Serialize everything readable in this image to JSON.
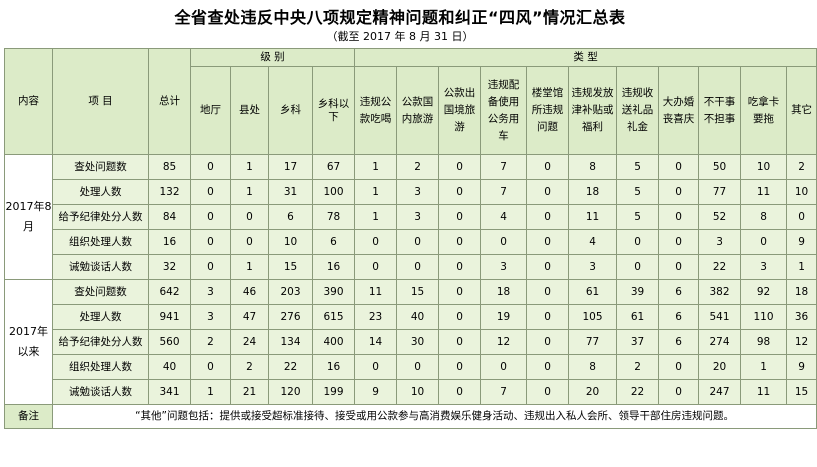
{
  "title": "全省查处违反中央八项规定精神问题和纠正“四风”情况汇总表",
  "subtitle": "（截至 2017 年 8 月 31 日）",
  "header": {
    "content": "内容",
    "item": "项    目",
    "total": "总计",
    "level_group": "级    别",
    "type_group": "类    型",
    "levels": [
      "地厅",
      "县处",
      "乡科",
      "乡科以下"
    ],
    "types": [
      "违规公款吃喝",
      "公款国内旅游",
      "公款出国境旅游",
      "违规配备使用公务用车",
      "楼堂馆所违规问题",
      "违规发放津补贴或福利",
      "违规收送礼品礼金",
      "大办婚丧喜庆",
      "不干事不担事",
      "吃拿卡要拖",
      "其它"
    ]
  },
  "sections": [
    {
      "period": "2017年8月",
      "rows": [
        {
          "label": "查处问题数",
          "values": [
            "85",
            "0",
            "1",
            "17",
            "67",
            "1",
            "2",
            "0",
            "7",
            "0",
            "8",
            "5",
            "0",
            "50",
            "10",
            "2"
          ]
        },
        {
          "label": "处理人数",
          "values": [
            "132",
            "0",
            "1",
            "31",
            "100",
            "1",
            "3",
            "0",
            "7",
            "0",
            "18",
            "5",
            "0",
            "77",
            "11",
            "10"
          ]
        },
        {
          "label": "给予纪律处分人数",
          "values": [
            "84",
            "0",
            "0",
            "6",
            "78",
            "1",
            "3",
            "0",
            "4",
            "0",
            "11",
            "5",
            "0",
            "52",
            "8",
            "0"
          ]
        },
        {
          "label": "组织处理人数",
          "values": [
            "16",
            "0",
            "0",
            "10",
            "6",
            "0",
            "0",
            "0",
            "0",
            "0",
            "4",
            "0",
            "0",
            "3",
            "0",
            "9"
          ]
        },
        {
          "label": "诫勉谈话人数",
          "values": [
            "32",
            "0",
            "1",
            "15",
            "16",
            "0",
            "0",
            "0",
            "3",
            "0",
            "3",
            "0",
            "0",
            "22",
            "3",
            "1"
          ]
        }
      ]
    },
    {
      "period": "2017年以来",
      "rows": [
        {
          "label": "查处问题数",
          "values": [
            "642",
            "3",
            "46",
            "203",
            "390",
            "11",
            "15",
            "0",
            "18",
            "0",
            "61",
            "39",
            "6",
            "382",
            "92",
            "18"
          ]
        },
        {
          "label": "处理人数",
          "values": [
            "941",
            "3",
            "47",
            "276",
            "615",
            "23",
            "40",
            "0",
            "19",
            "0",
            "105",
            "61",
            "6",
            "541",
            "110",
            "36"
          ]
        },
        {
          "label": "给予纪律处分人数",
          "values": [
            "560",
            "2",
            "24",
            "134",
            "400",
            "14",
            "30",
            "0",
            "12",
            "0",
            "77",
            "37",
            "6",
            "274",
            "98",
            "12"
          ]
        },
        {
          "label": "组织处理人数",
          "values": [
            "40",
            "0",
            "2",
            "22",
            "16",
            "0",
            "0",
            "0",
            "0",
            "0",
            "8",
            "2",
            "0",
            "20",
            "1",
            "9"
          ]
        },
        {
          "label": "诫勉谈话人数",
          "values": [
            "341",
            "1",
            "21",
            "120",
            "199",
            "9",
            "10",
            "0",
            "7",
            "0",
            "20",
            "22",
            "0",
            "247",
            "11",
            "15"
          ]
        }
      ]
    }
  ],
  "note": {
    "label": "备注",
    "text": "“其他”问题包括：提供或接受超标准接待、接受或用公款参与高消费娱乐健身活动、违规出入私人会所、领导干部住房违规问题。"
  }
}
